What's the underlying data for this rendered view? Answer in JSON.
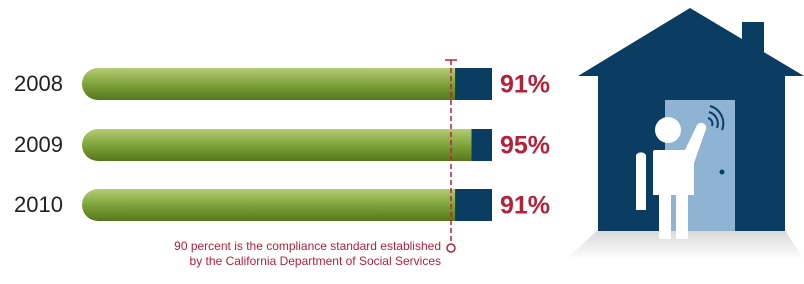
{
  "chart_data": {
    "type": "bar",
    "categories": [
      "2008",
      "2009",
      "2010"
    ],
    "values": [
      91,
      95,
      91
    ],
    "value_labels": [
      "91%",
      "95%",
      "91%"
    ],
    "xlim": [
      0,
      100
    ],
    "color": "#6f952c",
    "remainder_color": "#0b3d63",
    "standard": 90,
    "standard_note": [
      "90 percent is the compliance standard established",
      "by the  California Department of Social Services"
    ]
  }
}
